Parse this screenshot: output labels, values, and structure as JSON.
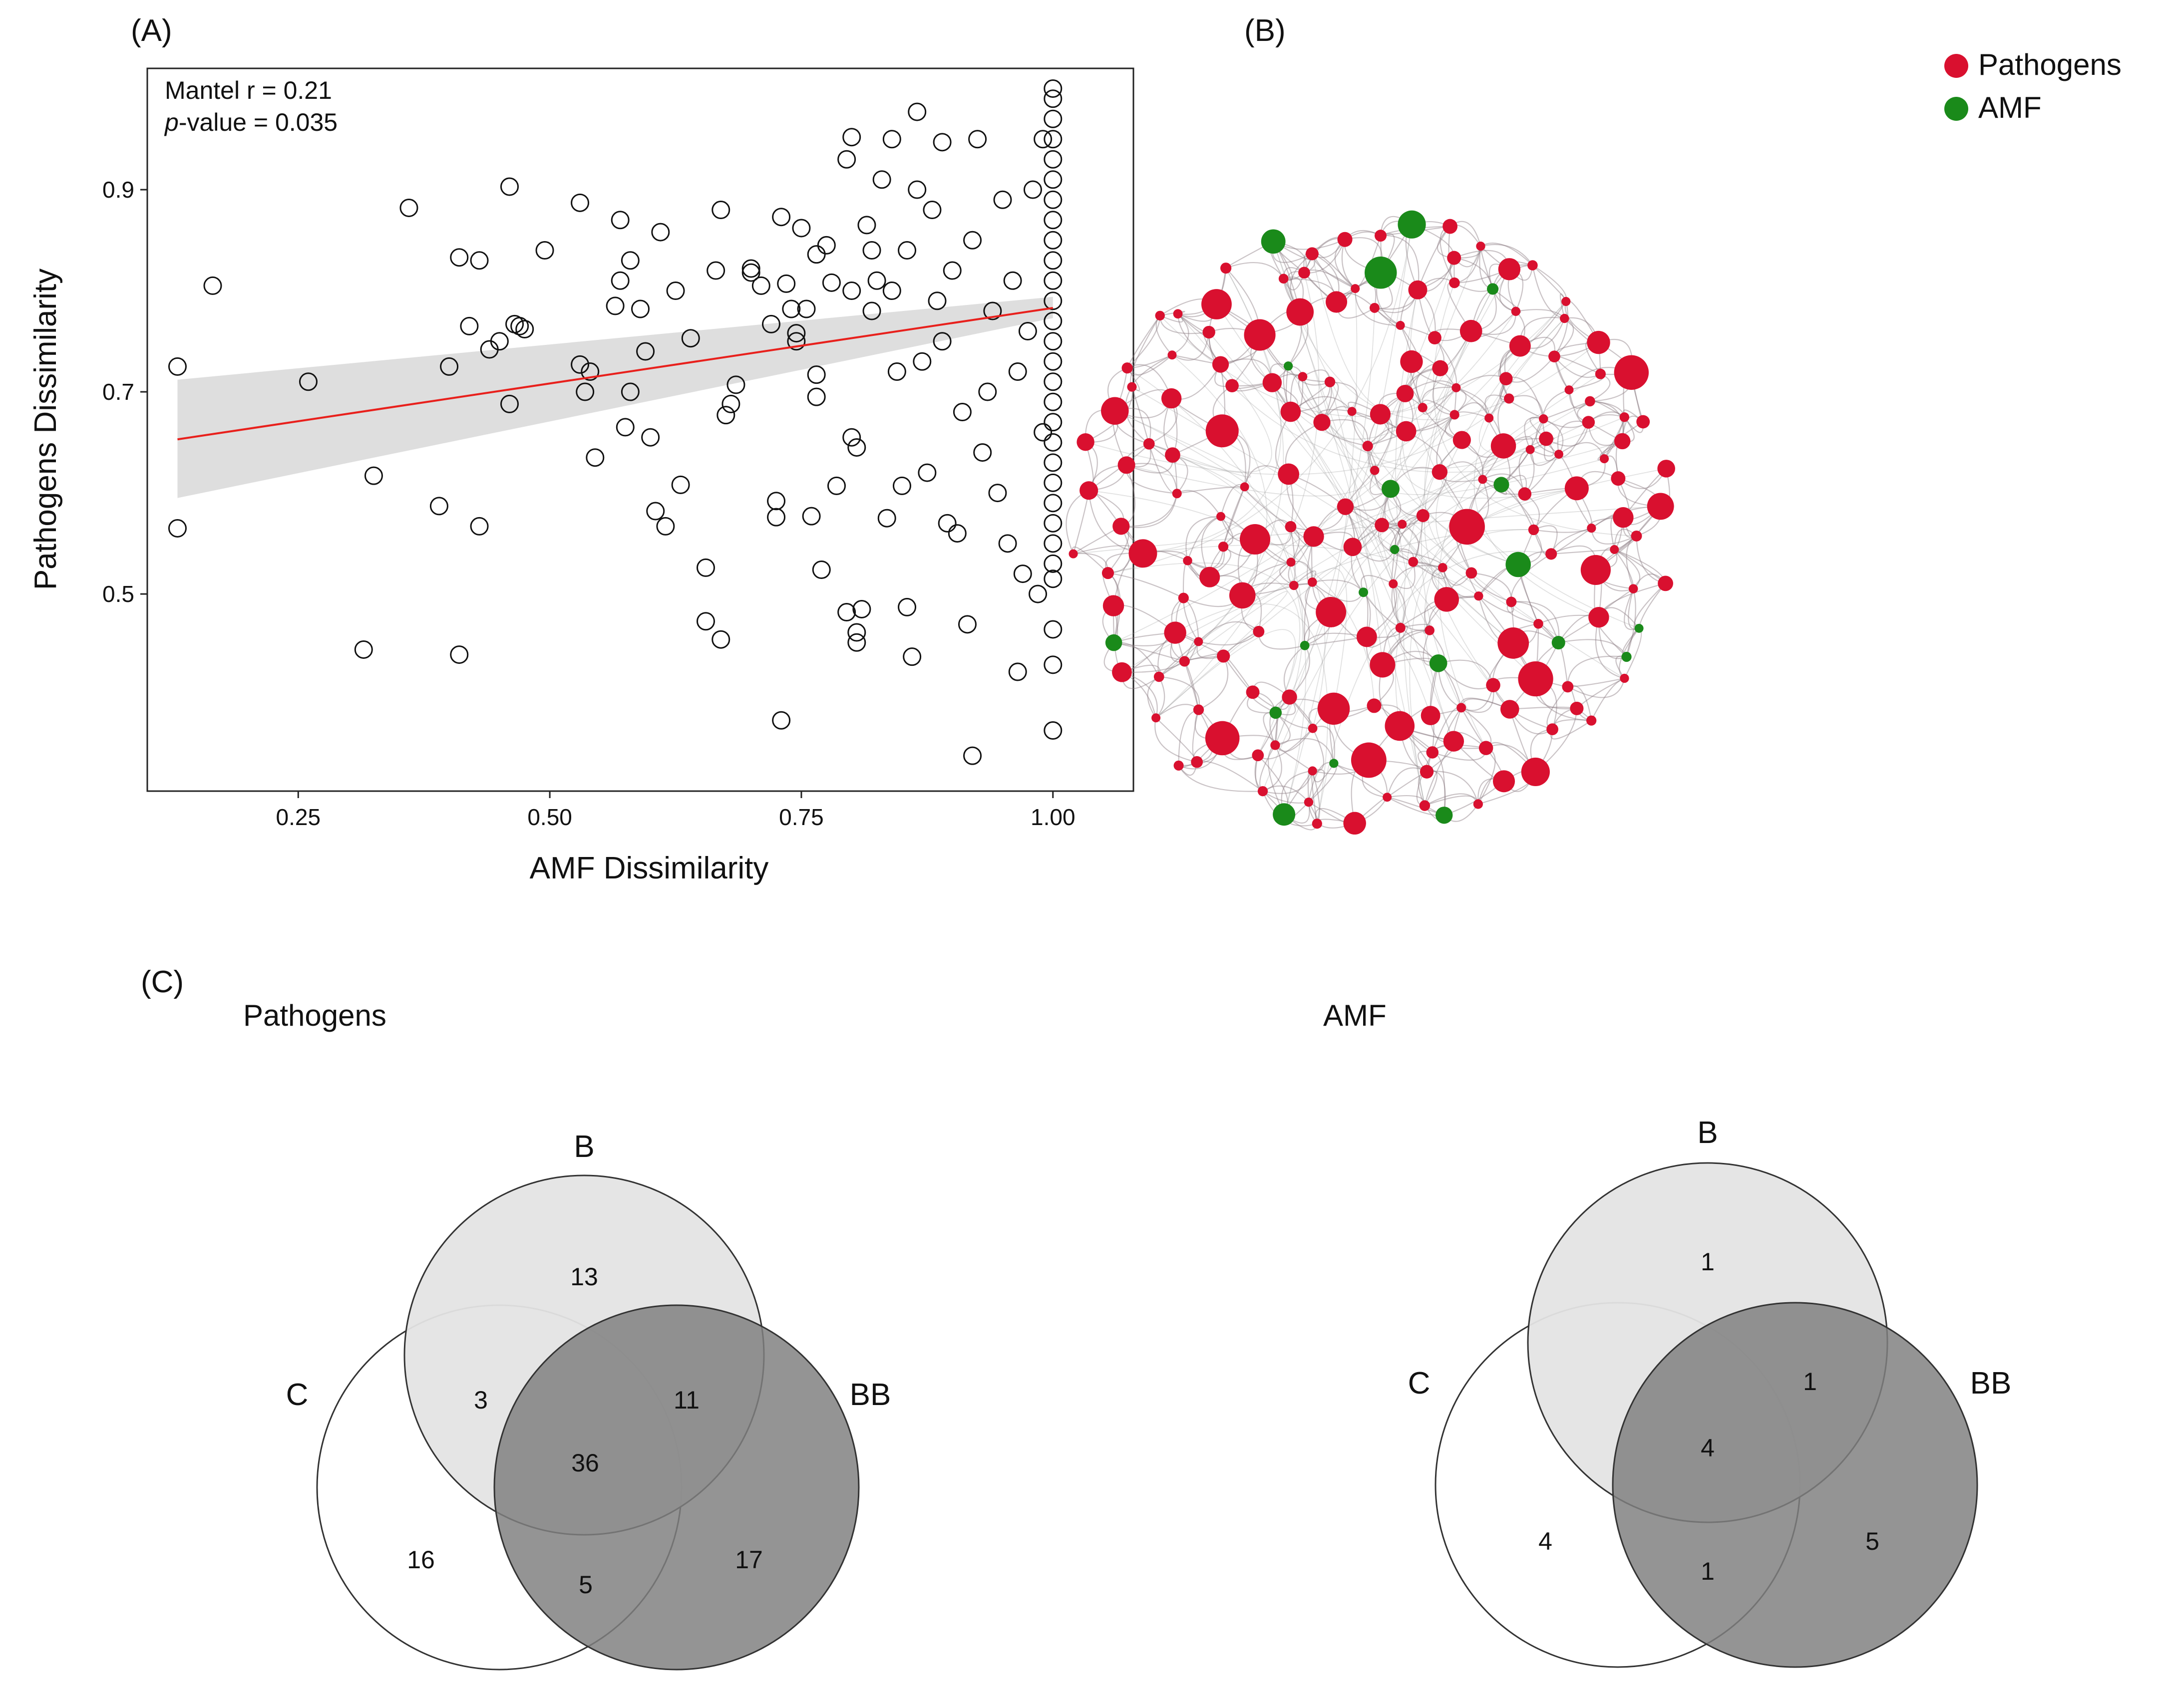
{
  "panel_labels": {
    "a": "(A)",
    "b": "(B)",
    "c": "(C)"
  },
  "colors": {
    "pathogens": "#d9102f",
    "amf": "#1a8a1a",
    "trend_line": "#e8201c",
    "confidence_band": "#dedede",
    "venn_b": "#e4e4e4",
    "venn_bb": "#808080"
  },
  "chart_data": [
    {
      "type": "scatter",
      "panel": "(A)",
      "xlabel": "AMF Dissimilarity",
      "ylabel": "Pathogens Dissimilarity",
      "xlim": [
        0.1,
        1.08
      ],
      "ylim": [
        0.305,
        1.02
      ],
      "xticks": [
        0.25,
        0.5,
        0.75,
        1.0
      ],
      "xtick_labels": [
        "0.25",
        "0.50",
        "0.75",
        "1.00"
      ],
      "yticks": [
        0.5,
        0.7,
        0.9
      ],
      "ytick_labels": [
        "0.5",
        "0.7",
        "0.9"
      ],
      "annotation": {
        "line1": "Mantel r = 0.21",
        "p_label": "p",
        "p_rest": "-value = 0.035"
      },
      "trend": {
        "x": [
          0.13,
          1.0
        ],
        "y": [
          0.653,
          0.783
        ]
      },
      "band": {
        "x": [
          0.13,
          1.0
        ],
        "lower": [
          0.595,
          0.773
        ],
        "upper": [
          0.712,
          0.794
        ]
      },
      "points": [
        [
          0.13,
          0.725
        ],
        [
          0.13,
          0.565
        ],
        [
          0.165,
          0.805
        ],
        [
          0.26,
          0.71
        ],
        [
          0.315,
          0.445
        ],
        [
          0.325,
          0.617
        ],
        [
          0.36,
          0.882
        ],
        [
          0.39,
          0.587
        ],
        [
          0.4,
          0.725
        ],
        [
          0.41,
          0.833
        ],
        [
          0.41,
          0.44
        ],
        [
          0.42,
          0.765
        ],
        [
          0.43,
          0.83
        ],
        [
          0.43,
          0.567
        ],
        [
          0.44,
          0.742
        ],
        [
          0.45,
          0.75
        ],
        [
          0.46,
          0.903
        ],
        [
          0.46,
          0.688
        ],
        [
          0.465,
          0.767
        ],
        [
          0.47,
          0.765
        ],
        [
          0.475,
          0.762
        ],
        [
          0.495,
          0.84
        ],
        [
          0.53,
          0.887
        ],
        [
          0.53,
          0.727
        ],
        [
          0.535,
          0.7
        ],
        [
          0.54,
          0.72
        ],
        [
          0.545,
          0.635
        ],
        [
          0.565,
          0.785
        ],
        [
          0.57,
          0.81
        ],
        [
          0.57,
          0.87
        ],
        [
          0.575,
          0.665
        ],
        [
          0.58,
          0.83
        ],
        [
          0.58,
          0.7
        ],
        [
          0.59,
          0.782
        ],
        [
          0.595,
          0.74
        ],
        [
          0.6,
          0.655
        ],
        [
          0.605,
          0.582
        ],
        [
          0.61,
          0.858
        ],
        [
          0.615,
          0.567
        ],
        [
          0.625,
          0.8
        ],
        [
          0.63,
          0.608
        ],
        [
          0.64,
          0.753
        ],
        [
          0.655,
          0.526
        ],
        [
          0.655,
          0.473
        ],
        [
          0.665,
          0.82
        ],
        [
          0.67,
          0.88
        ],
        [
          0.67,
          0.455
        ],
        [
          0.675,
          0.677
        ],
        [
          0.68,
          0.688
        ],
        [
          0.685,
          0.707
        ],
        [
          0.7,
          0.822
        ],
        [
          0.7,
          0.818
        ],
        [
          0.71,
          0.805
        ],
        [
          0.72,
          0.767
        ],
        [
          0.725,
          0.592
        ],
        [
          0.725,
          0.576
        ],
        [
          0.73,
          0.873
        ],
        [
          0.73,
          0.375
        ],
        [
          0.735,
          0.807
        ],
        [
          0.74,
          0.782
        ],
        [
          0.745,
          0.758
        ],
        [
          0.745,
          0.75
        ],
        [
          0.75,
          0.862
        ],
        [
          0.755,
          0.782
        ],
        [
          0.76,
          0.577
        ],
        [
          0.765,
          0.717
        ],
        [
          0.765,
          0.695
        ],
        [
          0.765,
          0.836
        ],
        [
          0.77,
          0.524
        ],
        [
          0.775,
          0.845
        ],
        [
          0.78,
          0.808
        ],
        [
          0.785,
          0.607
        ],
        [
          0.795,
          0.93
        ],
        [
          0.795,
          0.482
        ],
        [
          0.8,
          0.952
        ],
        [
          0.8,
          0.8
        ],
        [
          0.8,
          0.655
        ],
        [
          0.805,
          0.645
        ],
        [
          0.805,
          0.462
        ],
        [
          0.805,
          0.452
        ],
        [
          0.81,
          0.485
        ],
        [
          0.815,
          0.865
        ],
        [
          0.82,
          0.78
        ],
        [
          0.82,
          0.84
        ],
        [
          0.825,
          0.81
        ],
        [
          0.83,
          0.91
        ],
        [
          0.835,
          0.575
        ],
        [
          0.84,
          0.95
        ],
        [
          0.84,
          0.8
        ],
        [
          0.845,
          0.72
        ],
        [
          0.85,
          0.607
        ],
        [
          0.855,
          0.84
        ],
        [
          0.855,
          0.487
        ],
        [
          0.86,
          0.438
        ],
        [
          0.865,
          0.977
        ],
        [
          0.865,
          0.9
        ],
        [
          0.87,
          0.73
        ],
        [
          0.875,
          0.62
        ],
        [
          0.88,
          0.88
        ],
        [
          0.885,
          0.79
        ],
        [
          0.89,
          0.947
        ],
        [
          0.89,
          0.75
        ],
        [
          0.895,
          0.57
        ],
        [
          0.9,
          0.82
        ],
        [
          0.905,
          0.56
        ],
        [
          0.91,
          0.68
        ],
        [
          0.915,
          0.47
        ],
        [
          0.92,
          0.85
        ],
        [
          0.92,
          0.34
        ],
        [
          0.925,
          0.95
        ],
        [
          0.93,
          0.64
        ],
        [
          0.935,
          0.7
        ],
        [
          0.94,
          0.78
        ],
        [
          0.945,
          0.6
        ],
        [
          0.95,
          0.89
        ],
        [
          0.955,
          0.55
        ],
        [
          0.96,
          0.81
        ],
        [
          0.965,
          0.423
        ],
        [
          0.965,
          0.72
        ],
        [
          0.97,
          0.52
        ],
        [
          0.975,
          0.76
        ],
        [
          0.98,
          0.9
        ],
        [
          0.985,
          0.5
        ],
        [
          0.99,
          0.95
        ],
        [
          0.99,
          0.66
        ],
        [
          1.0,
          1.0
        ],
        [
          1.0,
          0.99
        ],
        [
          1.0,
          0.97
        ],
        [
          1.0,
          0.95
        ],
        [
          1.0,
          0.93
        ],
        [
          1.0,
          0.91
        ],
        [
          1.0,
          0.89
        ],
        [
          1.0,
          0.87
        ],
        [
          1.0,
          0.85
        ],
        [
          1.0,
          0.83
        ],
        [
          1.0,
          0.81
        ],
        [
          1.0,
          0.79
        ],
        [
          1.0,
          0.77
        ],
        [
          1.0,
          0.75
        ],
        [
          1.0,
          0.73
        ],
        [
          1.0,
          0.71
        ],
        [
          1.0,
          0.69
        ],
        [
          1.0,
          0.67
        ],
        [
          1.0,
          0.65
        ],
        [
          1.0,
          0.63
        ],
        [
          1.0,
          0.61
        ],
        [
          1.0,
          0.59
        ],
        [
          1.0,
          0.57
        ],
        [
          1.0,
          0.55
        ],
        [
          1.0,
          0.53
        ],
        [
          1.0,
          0.515
        ],
        [
          1.0,
          0.465
        ],
        [
          1.0,
          0.43
        ],
        [
          1.0,
          0.365
        ]
      ]
    },
    {
      "type": "network",
      "panel": "(B)",
      "legend": [
        {
          "name": "Pathogens",
          "color": "#d9102f"
        },
        {
          "name": "AMF",
          "color": "#1a8a1a"
        }
      ],
      "node_counts": {
        "pathogens": 180,
        "amf": 20
      }
    },
    {
      "type": "venn",
      "panel": "(C)",
      "title": "Pathogens",
      "sets": [
        "B",
        "C",
        "BB"
      ],
      "regions": {
        "B_only": "13",
        "C_B": "3",
        "B_BB": "11",
        "all": "36",
        "C_only": "16",
        "C_BB": "5",
        "BB_only": "17"
      }
    },
    {
      "type": "venn",
      "panel": "(C)",
      "title": "AMF",
      "sets": [
        "B",
        "C",
        "BB"
      ],
      "regions": {
        "B_only": "1",
        "B_BB": "1",
        "all": "4",
        "C_only": "4",
        "C_BB": "1",
        "BB_only": "5"
      }
    }
  ]
}
